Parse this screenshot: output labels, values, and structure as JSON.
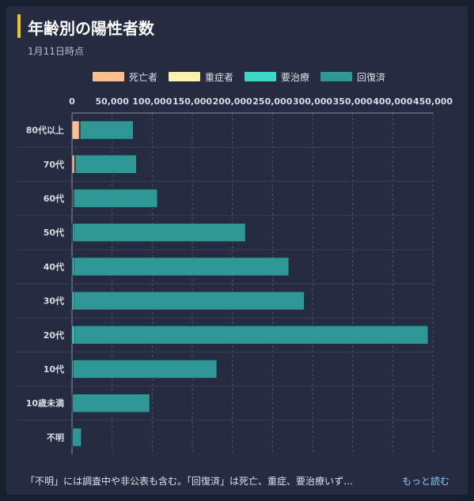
{
  "card": {
    "title": "年齢別の陽性者数",
    "subtitle": "1月11日時点",
    "footnote": "「不明」には調査中や非公表も含む。「回復済」は死亡、重症、要治療いず…",
    "more_link": "もっと読む"
  },
  "colors": {
    "background": "#17202e",
    "card": "#252b40",
    "accent": "#f5c518",
    "link": "#8ec8ff"
  },
  "chart_data": {
    "type": "bar",
    "orientation": "horizontal",
    "stacked": true,
    "title": "年齢別の陽性者数",
    "subtitle": "1月11日時点",
    "categories": [
      "80代以上",
      "70代",
      "60代",
      "50代",
      "40代",
      "30代",
      "20代",
      "10代",
      "10歳未満",
      "不明"
    ],
    "series": [
      {
        "name": "死亡者",
        "color": "#ffbf8e",
        "values": [
          9000,
          3000,
          1000,
          300,
          100,
          0,
          0,
          0,
          0,
          0
        ]
      },
      {
        "name": "重症者",
        "color": "#fff0b0",
        "values": [
          500,
          600,
          500,
          400,
          200,
          100,
          0,
          0,
          0,
          0
        ]
      },
      {
        "name": "要治療",
        "color": "#3ed8c8",
        "values": [
          800,
          700,
          1000,
          1500,
          2000,
          2500,
          3000,
          1500,
          800,
          500
        ]
      },
      {
        "name": "回復済",
        "color": "#2f9896",
        "values": [
          66000,
          76000,
          104000,
          214000,
          268000,
          287000,
          441000,
          179000,
          96000,
          11000
        ]
      }
    ],
    "xlim": [
      0,
      450000
    ],
    "x_ticks": [
      "0",
      "50,000",
      "100,000",
      "150,000",
      "200,000",
      "250,000",
      "300,000",
      "350,000",
      "400,000",
      "450,000"
    ],
    "x_tick_values": [
      0,
      50000,
      100000,
      150000,
      200000,
      250000,
      300000,
      350000,
      400000,
      450000
    ],
    "grid": true,
    "legend_position": "top"
  }
}
